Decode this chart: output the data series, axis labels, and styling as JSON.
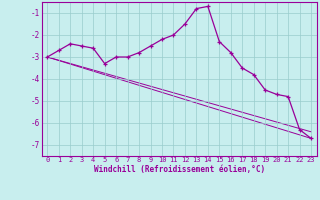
{
  "x": [
    0,
    1,
    2,
    3,
    4,
    5,
    6,
    7,
    8,
    9,
    10,
    11,
    12,
    13,
    14,
    15,
    16,
    17,
    18,
    19,
    20,
    21,
    22,
    23
  ],
  "line1": [
    -3.0,
    -2.7,
    -2.4,
    -2.5,
    -2.6,
    -3.3,
    -3.0,
    -3.0,
    -2.8,
    -2.5,
    -2.2,
    -2.0,
    -1.5,
    -0.8,
    -0.7,
    -2.3,
    -2.8,
    -3.5,
    -3.8,
    -4.5,
    -4.7,
    -4.8,
    -6.3,
    -6.7
  ],
  "line2_x": [
    0,
    23
  ],
  "line2_y": [
    -3.0,
    -6.7
  ],
  "line3_x": [
    0,
    23
  ],
  "line3_y": [
    -3.0,
    -6.4
  ],
  "line_color": "#990099",
  "background_color": "#c8eeee",
  "grid_color": "#99cccc",
  "xlabel": "Windchill (Refroidissement éolien,°C)",
  "ylim": [
    -7.5,
    -0.5
  ],
  "xlim": [
    -0.5,
    23.5
  ],
  "yticks": [
    -7,
    -6,
    -5,
    -4,
    -3,
    -2,
    -1
  ],
  "xticks": [
    0,
    1,
    2,
    3,
    4,
    5,
    6,
    7,
    8,
    9,
    10,
    11,
    12,
    13,
    14,
    15,
    16,
    17,
    18,
    19,
    20,
    21,
    22,
    23
  ],
  "tick_fontsize": 5.0,
  "xlabel_fontsize": 5.5
}
